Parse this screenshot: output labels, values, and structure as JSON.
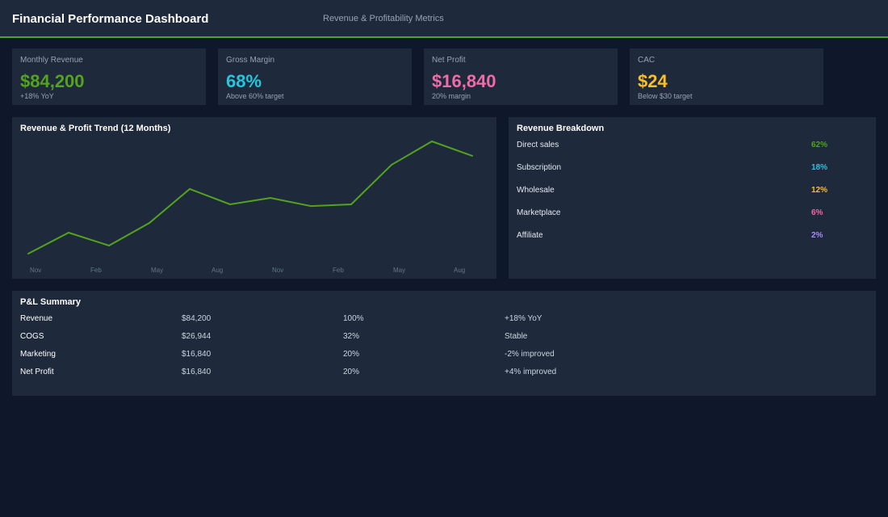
{
  "header": {
    "title": "Financial Performance Dashboard",
    "subtitle": "Revenue & Profitability Metrics"
  },
  "kpis": [
    {
      "label": "Monthly Revenue",
      "value": "$84,200",
      "sub": "+18% YoY",
      "color": "#52a31e"
    },
    {
      "label": "Gross Margin",
      "value": "68%",
      "sub": "Above 60% target",
      "color": "#22c7e0"
    },
    {
      "label": "Net Profit",
      "value": "$16,840",
      "sub": "20% margin",
      "color": "#f06ba8"
    },
    {
      "label": "CAC",
      "value": "$24",
      "sub": "Below $30 target",
      "color": "#fbbf24"
    }
  ],
  "chart_data": {
    "type": "line",
    "title": "Revenue & Profit Trend (12 Months)",
    "x_tick_labels": [
      "Nov",
      "Feb",
      "May",
      "Aug",
      "Nov",
      "Feb",
      "May",
      "Aug"
    ],
    "values": [
      0,
      18.7,
      7.2,
      27.3,
      57.6,
      43.9,
      49.6,
      42.4,
      43.9,
      79.1,
      100,
      87.1
    ],
    "ylim": [
      0,
      100
    ],
    "grid": false,
    "color": "#52a31e"
  },
  "breakdown": {
    "title": "Revenue Breakdown",
    "items": [
      {
        "label": "Direct sales",
        "pct": "62%",
        "color": "#52a31e"
      },
      {
        "label": "Subscription",
        "pct": "18%",
        "color": "#22c7e0"
      },
      {
        "label": "Wholesale",
        "pct": "12%",
        "color": "#fbbf24"
      },
      {
        "label": "Marketplace",
        "pct": "6%",
        "color": "#f06ba8"
      },
      {
        "label": "Affiliate",
        "pct": "2%",
        "color": "#a78bfa"
      }
    ]
  },
  "pl": {
    "title": "P&L Summary",
    "rows": [
      [
        "Revenue",
        "$84,200",
        "100%",
        "+18% YoY"
      ],
      [
        "COGS",
        "$26,944",
        "32%",
        "Stable"
      ],
      [
        "Marketing",
        "$16,840",
        "20%",
        "-2% improved"
      ],
      [
        "Net Profit",
        "$16,840",
        "20%",
        "+4% improved"
      ]
    ]
  }
}
